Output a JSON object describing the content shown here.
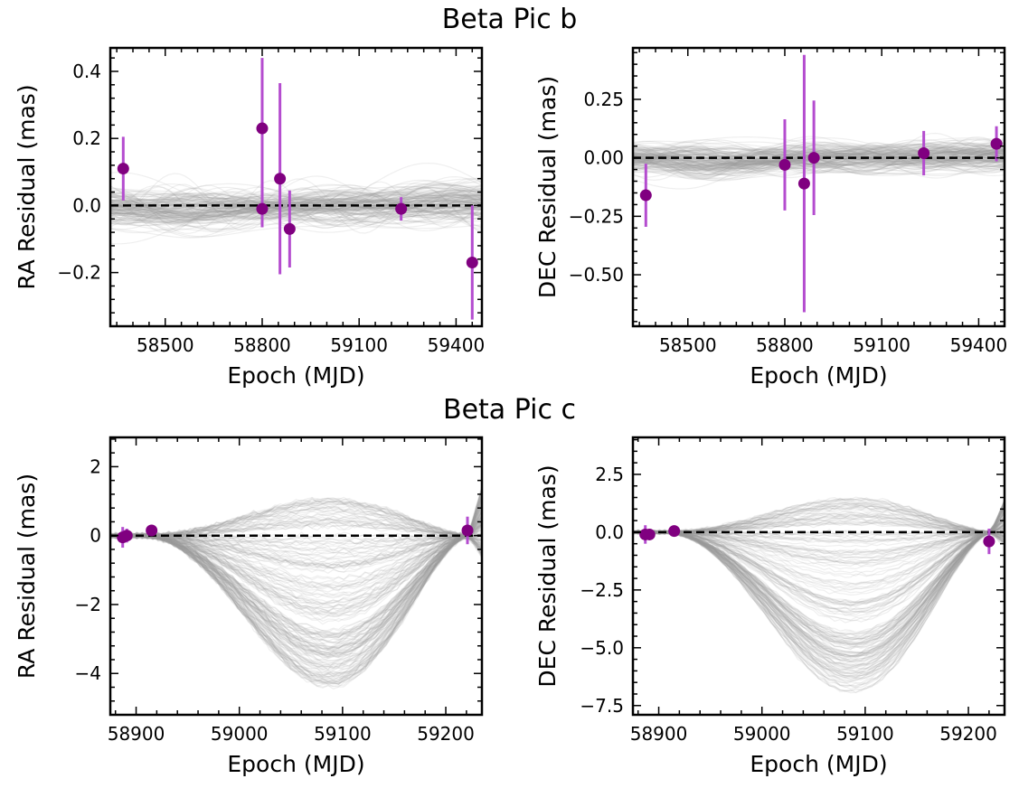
{
  "titles": {
    "planet_b": "Beta Pic b",
    "planet_c": "Beta Pic c"
  },
  "colors": {
    "points": "#800080",
    "errorbars": "#b44ccf",
    "models": "#999999",
    "zero_line": "#000000"
  },
  "chart_data": [
    {
      "type": "scatter",
      "panel": "b-ra",
      "xlabel": "Epoch (MJD)",
      "ylabel": "RA Residual (mas)",
      "xlim": [
        58330,
        59480
      ],
      "ylim": [
        -0.36,
        0.47
      ],
      "xticks": [
        58500,
        58800,
        59100,
        59400
      ],
      "yticks": [
        -0.2,
        0.0,
        0.2,
        0.4
      ],
      "ytick_labels": [
        "−0.2",
        "0.0",
        "0.2",
        "0.4"
      ],
      "zero_line": true,
      "model_envelope": {
        "kind": "b",
        "spread": 0.08,
        "count": 160
      },
      "points": [
        {
          "x": 58370,
          "y": 0.11,
          "err": 0.095
        },
        {
          "x": 58800,
          "y": 0.23,
          "err": 0.21
        },
        {
          "x": 58800,
          "y": -0.01,
          "err": 0.055
        },
        {
          "x": 58855,
          "y": 0.08,
          "err": 0.285
        },
        {
          "x": 58885,
          "y": -0.07,
          "err": 0.115
        },
        {
          "x": 59230,
          "y": -0.01,
          "err": 0.035
        },
        {
          "x": 59450,
          "y": -0.17,
          "err": 0.17
        }
      ]
    },
    {
      "type": "scatter",
      "panel": "b-dec",
      "xlabel": "Epoch (MJD)",
      "ylabel": "DEC Residual (mas)",
      "xlim": [
        58330,
        59480
      ],
      "ylim": [
        -0.72,
        0.47
      ],
      "xticks": [
        58500,
        58800,
        59100,
        59400
      ],
      "yticks": [
        -0.5,
        -0.25,
        0.0,
        0.25
      ],
      "ytick_labels": [
        "−0.50",
        "−0.25",
        "0.00",
        "0.25"
      ],
      "zero_line": true,
      "model_envelope": {
        "kind": "b",
        "spread": 0.09,
        "count": 160
      },
      "points": [
        {
          "x": 58370,
          "y": -0.16,
          "err": 0.135
        },
        {
          "x": 58800,
          "y": -0.03,
          "err": 0.195
        },
        {
          "x": 58860,
          "y": -0.11,
          "err": 0.55
        },
        {
          "x": 58890,
          "y": 0.0,
          "err": 0.245
        },
        {
          "x": 59230,
          "y": 0.02,
          "err": 0.095
        },
        {
          "x": 59455,
          "y": 0.06,
          "err": 0.075
        }
      ]
    },
    {
      "type": "scatter",
      "panel": "c-ra",
      "xlabel": "Epoch (MJD)",
      "ylabel": "RA Residual (mas)",
      "xlim": [
        58875,
        59235
      ],
      "ylim": [
        -5.2,
        2.85
      ],
      "xticks": [
        58900,
        59000,
        59100,
        59200
      ],
      "yticks": [
        -4,
        -2,
        0,
        2
      ],
      "ytick_labels": [
        "−4",
        "−2",
        "0",
        "2"
      ],
      "zero_line": true,
      "model_envelope": {
        "kind": "c",
        "dip": -4.2,
        "hump": 1.1,
        "count": 200
      },
      "points": [
        {
          "x": 58887,
          "y": -0.05,
          "err": 0.3
        },
        {
          "x": 58891,
          "y": 0.0,
          "err": 0.2
        },
        {
          "x": 58915,
          "y": 0.15,
          "err": 0.1
        },
        {
          "x": 59221,
          "y": 0.15,
          "err": 0.4
        }
      ]
    },
    {
      "type": "scatter",
      "panel": "c-dec",
      "xlabel": "Epoch (MJD)",
      "ylabel": "DEC Residual (mas)",
      "xlim": [
        58875,
        59235
      ],
      "ylim": [
        -7.9,
        4.1
      ],
      "xticks": [
        58900,
        59000,
        59100,
        59200
      ],
      "yticks": [
        -7.5,
        -5.0,
        -2.5,
        0.0,
        2.5
      ],
      "ytick_labels": [
        "−7.5",
        "−5.0",
        "−2.5",
        "0.0",
        "2.5"
      ],
      "zero_line": true,
      "model_envelope": {
        "kind": "c",
        "dip": -6.6,
        "hump": 1.5,
        "count": 200
      },
      "points": [
        {
          "x": 58887,
          "y": -0.1,
          "err": 0.4
        },
        {
          "x": 58891,
          "y": -0.1,
          "err": 0.2
        },
        {
          "x": 58915,
          "y": 0.05,
          "err": 0.1
        },
        {
          "x": 59220,
          "y": -0.4,
          "err": 0.55
        }
      ]
    }
  ]
}
